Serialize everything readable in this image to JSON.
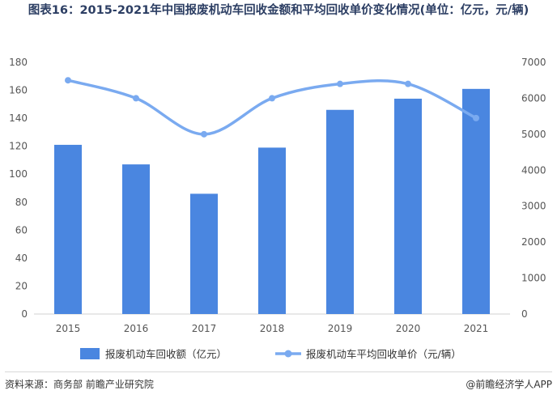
{
  "title": "图表16：2015-2021年中国报废机动车回收金额和平均回收单价变化情况(单位：亿元，元/辆)",
  "chart_data": {
    "type": "bar+line",
    "categories": [
      "2015",
      "2016",
      "2017",
      "2018",
      "2019",
      "2020",
      "2021"
    ],
    "series": [
      {
        "name": "报废机动车回收额（亿元）",
        "type": "bar",
        "axis": "left",
        "values": [
          121,
          107,
          86,
          119,
          146,
          154,
          161
        ],
        "color": "#4a86e0"
      },
      {
        "name": "报废机动车平均回收单价（元/辆）",
        "type": "line",
        "axis": "right",
        "values": [
          6500,
          6000,
          5000,
          6000,
          6400,
          6400,
          5450
        ],
        "color": "#7aaaf0"
      }
    ],
    "y_left": {
      "min": 0,
      "max": 180,
      "step": 20
    },
    "y_right": {
      "min": 0,
      "max": 7000,
      "step": 1000
    },
    "grid": false,
    "legend_position": "bottom"
  },
  "footer": {
    "source": "资料来源：商务部 前瞻产业研究院",
    "brand": "@前瞻经济学人APP"
  }
}
